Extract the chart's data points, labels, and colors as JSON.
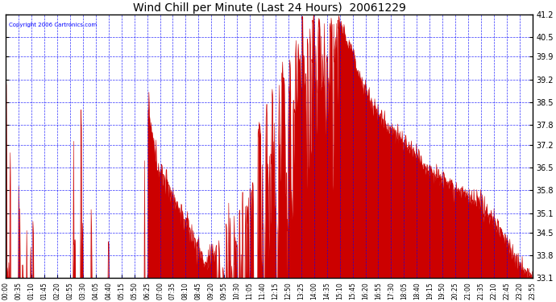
{
  "title": "Wind Chill per Minute (Last 24 Hours)  20061229",
  "copyright": "Copyright 2006 Cartronics.com",
  "yticks": [
    33.1,
    33.8,
    34.5,
    35.1,
    35.8,
    36.5,
    37.2,
    37.8,
    38.5,
    39.2,
    39.9,
    40.5,
    41.2
  ],
  "ymin": 33.1,
  "ymax": 41.2,
  "bg_color": "#FFFFFF",
  "plot_bg_color": "#FFFFFF",
  "grid_color": "#0000FF",
  "line_color": "#CC0000",
  "fill_color": "#CC0000",
  "title_color": "#000000",
  "border_color": "#000000",
  "xtick_labels": [
    "00:00",
    "00:35",
    "01:10",
    "01:45",
    "02:20",
    "02:55",
    "03:30",
    "04:05",
    "04:40",
    "05:15",
    "05:50",
    "06:25",
    "07:00",
    "07:35",
    "08:10",
    "08:45",
    "09:20",
    "09:55",
    "10:30",
    "11:05",
    "11:40",
    "12:15",
    "12:50",
    "13:25",
    "14:00",
    "14:35",
    "15:10",
    "15:45",
    "16:20",
    "16:55",
    "17:30",
    "18:05",
    "18:40",
    "19:15",
    "19:50",
    "20:25",
    "21:00",
    "21:35",
    "22:10",
    "22:45",
    "23:20",
    "23:55"
  ],
  "num_minutes": 1440
}
